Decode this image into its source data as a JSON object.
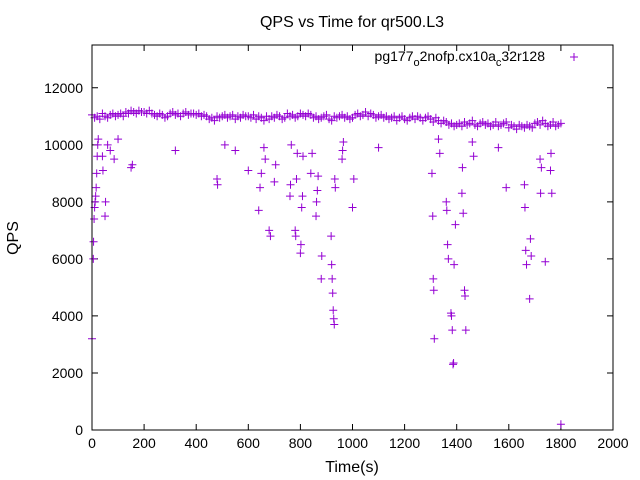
{
  "chart_data": {
    "type": "scatter",
    "title": "QPS vs Time for qr500.L3",
    "xlabel": "Time(s)",
    "ylabel": "QPS",
    "xlim": [
      0,
      2000
    ],
    "ylim": [
      0,
      13500
    ],
    "xticks": [
      "0",
      "200",
      "400",
      "600",
      "800",
      "1000",
      "1200",
      "1400",
      "1600",
      "1800",
      "2000"
    ],
    "yticks": [
      "0",
      "2000",
      "4000",
      "6000",
      "8000",
      "10000",
      "12000"
    ],
    "legend_position": "top-right",
    "legend_parts": [
      {
        "t": "pg177",
        "sub": false
      },
      {
        "t": "o",
        "sub": true
      },
      {
        "t": "2nofp.cx10a",
        "sub": false
      },
      {
        "t": "c",
        "sub": true
      },
      {
        "t": "32r128",
        "sub": false
      }
    ],
    "series_color": "#9400d3",
    "marker": "plus",
    "band": {
      "x_start": 0,
      "x_step": 10,
      "y": [
        11050,
        10950,
        11000,
        10900,
        11100,
        11000,
        10950,
        11050,
        11100,
        11000,
        11050,
        11100,
        11000,
        11150,
        11100,
        11200,
        11150,
        11100,
        11200,
        11150,
        11150,
        11100,
        11200,
        11100,
        11050,
        11000,
        11100,
        11050,
        10950,
        11000,
        11100,
        11150,
        11050,
        11100,
        11000,
        11100,
        11150,
        11050,
        11100,
        11100,
        11050,
        11100,
        11000,
        11050,
        11000,
        10900,
        10950,
        10850,
        11000,
        10950,
        11000,
        11050,
        10950,
        11000,
        11050,
        10900,
        11000,
        10950,
        11050,
        11000,
        11000,
        10950,
        11050,
        10900,
        11000,
        10950,
        10850,
        11000,
        10900,
        11000,
        10950,
        11050,
        11000,
        10900,
        10950,
        11100,
        11000,
        11050,
        10950,
        11000,
        11100,
        11050,
        11000,
        11100,
        11050,
        10950,
        11000,
        10900,
        10950,
        11000,
        11050,
        10900,
        10850,
        11000,
        10950,
        11000,
        11050,
        10950,
        11000,
        10900,
        10950,
        11050,
        11100,
        11000,
        11050,
        11150,
        11000,
        11100,
        11050,
        10950,
        11000,
        11050,
        10950,
        11000,
        10900,
        10950,
        11000,
        10850,
        10950,
        11000,
        10900,
        10850,
        10950,
        11000,
        10900,
        11000,
        10950,
        10850,
        10950,
        11000,
        10900,
        10800,
        10950,
        10850,
        10750,
        10850,
        10800,
        10700,
        10750,
        10650,
        10700,
        10750,
        10650,
        10800,
        10700,
        10750,
        10850,
        10700,
        10650,
        10750,
        10800,
        10700,
        10750,
        10650,
        10700,
        10800,
        10650,
        10700,
        10750,
        10800,
        10600,
        10700,
        10650,
        10550,
        10700,
        10650,
        10600,
        10700,
        10650,
        10600,
        10750,
        10800,
        10700,
        10850,
        10750,
        10650,
        10700,
        10800,
        10650,
        10700,
        10750
      ]
    },
    "outliers": [
      [
        0,
        3200
      ],
      [
        5,
        6000
      ],
      [
        6,
        6600
      ],
      [
        8,
        7400
      ],
      [
        10,
        7800
      ],
      [
        12,
        8000
      ],
      [
        14,
        8200
      ],
      [
        16,
        8500
      ],
      [
        18,
        9000
      ],
      [
        20,
        9600
      ],
      [
        22,
        10000
      ],
      [
        24,
        10200
      ],
      [
        40,
        9600
      ],
      [
        42,
        9100
      ],
      [
        50,
        7500
      ],
      [
        52,
        8000
      ],
      [
        60,
        10000
      ],
      [
        70,
        9800
      ],
      [
        85,
        9500
      ],
      [
        100,
        10200
      ],
      [
        150,
        9200
      ],
      [
        155,
        9300
      ],
      [
        320,
        9800
      ],
      [
        480,
        8800
      ],
      [
        482,
        8600
      ],
      [
        510,
        10000
      ],
      [
        550,
        9800
      ],
      [
        600,
        9100
      ],
      [
        640,
        7700
      ],
      [
        645,
        8500
      ],
      [
        650,
        9000
      ],
      [
        660,
        9900
      ],
      [
        665,
        9500
      ],
      [
        680,
        7000
      ],
      [
        685,
        6800
      ],
      [
        700,
        8700
      ],
      [
        705,
        9300
      ],
      [
        760,
        8200
      ],
      [
        762,
        8600
      ],
      [
        765,
        10000
      ],
      [
        780,
        7000
      ],
      [
        782,
        6800
      ],
      [
        785,
        8800
      ],
      [
        788,
        9700
      ],
      [
        800,
        6200
      ],
      [
        802,
        6500
      ],
      [
        805,
        7800
      ],
      [
        808,
        8200
      ],
      [
        810,
        9600
      ],
      [
        840,
        9000
      ],
      [
        845,
        9700
      ],
      [
        860,
        7500
      ],
      [
        862,
        8000
      ],
      [
        865,
        8400
      ],
      [
        868,
        8900
      ],
      [
        880,
        5300
      ],
      [
        882,
        6100
      ],
      [
        918,
        6800
      ],
      [
        920,
        5800
      ],
      [
        922,
        5300
      ],
      [
        924,
        4800
      ],
      [
        926,
        4200
      ],
      [
        928,
        3900
      ],
      [
        930,
        3700
      ],
      [
        932,
        8800
      ],
      [
        934,
        8500
      ],
      [
        960,
        9500
      ],
      [
        962,
        9800
      ],
      [
        965,
        10100
      ],
      [
        1000,
        7800
      ],
      [
        1005,
        8800
      ],
      [
        1100,
        9900
      ],
      [
        1305,
        9000
      ],
      [
        1308,
        7500
      ],
      [
        1310,
        5300
      ],
      [
        1312,
        4900
      ],
      [
        1314,
        3200
      ],
      [
        1330,
        10200
      ],
      [
        1335,
        9700
      ],
      [
        1360,
        8000
      ],
      [
        1362,
        7700
      ],
      [
        1365,
        6500
      ],
      [
        1368,
        6000
      ],
      [
        1378,
        4100
      ],
      [
        1380,
        4000
      ],
      [
        1383,
        3500
      ],
      [
        1386,
        2300
      ],
      [
        1388,
        2350
      ],
      [
        1390,
        5800
      ],
      [
        1395,
        7200
      ],
      [
        1420,
        8300
      ],
      [
        1422,
        9200
      ],
      [
        1425,
        7600
      ],
      [
        1430,
        4900
      ],
      [
        1432,
        4700
      ],
      [
        1435,
        3500
      ],
      [
        1460,
        10100
      ],
      [
        1465,
        9600
      ],
      [
        1560,
        9900
      ],
      [
        1590,
        8500
      ],
      [
        1660,
        8600
      ],
      [
        1662,
        7800
      ],
      [
        1665,
        6300
      ],
      [
        1668,
        5800
      ],
      [
        1680,
        4600
      ],
      [
        1683,
        6700
      ],
      [
        1686,
        6100
      ],
      [
        1720,
        9500
      ],
      [
        1722,
        8300
      ],
      [
        1725,
        9200
      ],
      [
        1740,
        5900
      ],
      [
        1760,
        9100
      ],
      [
        1762,
        9700
      ],
      [
        1765,
        8300
      ],
      [
        1800,
        200
      ]
    ]
  }
}
